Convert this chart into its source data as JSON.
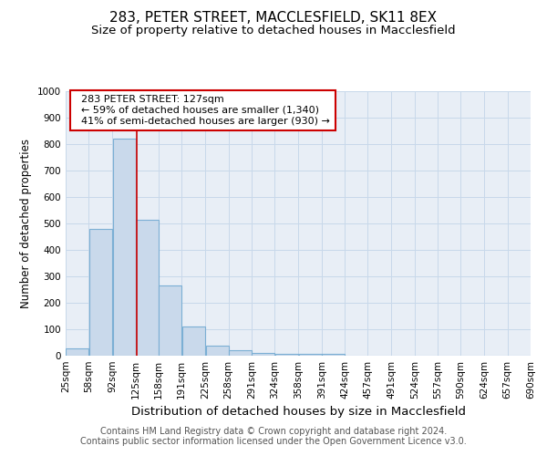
{
  "title1": "283, PETER STREET, MACCLESFIELD, SK11 8EX",
  "title2": "Size of property relative to detached houses in Macclesfield",
  "xlabel": "Distribution of detached houses by size in Macclesfield",
  "ylabel": "Number of detached properties",
  "footnote1": "Contains HM Land Registry data © Crown copyright and database right 2024.",
  "footnote2": "Contains public sector information licensed under the Open Government Licence v3.0.",
  "annotation_line1": "283 PETER STREET: 127sqm",
  "annotation_line2": "← 59% of detached houses are smaller (1,340)",
  "annotation_line3": "41% of semi-detached houses are larger (930) →",
  "bar_edges": [
    25,
    58,
    92,
    125,
    158,
    191,
    225,
    258,
    291,
    324,
    358,
    391,
    424,
    457,
    491,
    524,
    557,
    590,
    624,
    657,
    690
  ],
  "bar_heights": [
    28,
    478,
    820,
    515,
    265,
    110,
    37,
    20,
    10,
    7,
    7,
    7,
    0,
    0,
    0,
    0,
    0,
    0,
    0,
    0
  ],
  "bar_color": "#c9d9eb",
  "bar_edge_color": "#7bafd4",
  "bar_edge_width": 0.8,
  "red_line_x": 127,
  "red_line_color": "#cc0000",
  "ylim": [
    0,
    1000
  ],
  "yticks": [
    0,
    100,
    200,
    300,
    400,
    500,
    600,
    700,
    800,
    900,
    1000
  ],
  "annotation_box_edgecolor": "#cc0000",
  "annotation_box_facecolor": "white",
  "title1_fontsize": 11,
  "title2_fontsize": 9.5,
  "xlabel_fontsize": 9.5,
  "ylabel_fontsize": 8.5,
  "footnote_fontsize": 7,
  "annotation_fontsize": 8,
  "tick_label_fontsize": 7.5,
  "grid_color": "#c8d8ea",
  "background_color": "#e8eef6"
}
